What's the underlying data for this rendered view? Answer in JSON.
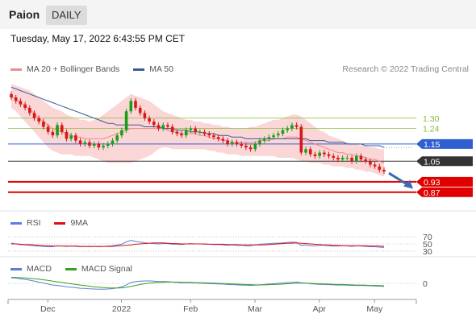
{
  "header": {
    "ticker": "Paion",
    "period": "DAILY"
  },
  "datetime": "Tuesday, May 17, 2022 6:43:55 PM CET",
  "credit": "Research © 2022 Trading Central",
  "legends": {
    "price": [
      {
        "label": "MA 20 + Bollinger Bands",
        "color": "#f08a8a"
      },
      {
        "label": "MA 50",
        "color": "#3a5a98"
      }
    ],
    "rsi": [
      {
        "label": "RSI",
        "color": "#5b7fd6"
      },
      {
        "label": "9MA",
        "color": "#e01010"
      }
    ],
    "macd": [
      {
        "label": "MACD",
        "color": "#5b7fd6"
      },
      {
        "label": "MACD Signal",
        "color": "#3aa01a"
      }
    ]
  },
  "colors": {
    "up": "#1a9e1a",
    "down": "#d81818",
    "bb_fill": "#fbd6d6",
    "ma20": "#f08a8a",
    "ma50": "#3a5a98",
    "arrow": "#3a6ab0"
  },
  "chart_data": [
    {
      "type": "candlestick",
      "x_ticks": [
        "Dec",
        "2022",
        "Feb",
        "Mar",
        "Apr",
        "May"
      ],
      "ylim": [
        0.78,
        1.5
      ],
      "levels": [
        {
          "value": 1.3,
          "label": "1.30",
          "color": "#8db83a",
          "style": "line"
        },
        {
          "value": 1.24,
          "label": "1.24",
          "color": "#8db83a",
          "style": "line"
        },
        {
          "value": 1.15,
          "label": "1.15",
          "color": "#2f5fd0",
          "style": "box"
        },
        {
          "value": 1.05,
          "label": "1.05",
          "color": "#333333",
          "style": "box"
        },
        {
          "value": 0.93,
          "label": "0.93",
          "color": "#e00000",
          "style": "box"
        },
        {
          "value": 0.87,
          "label": "0.87",
          "color": "#e00000",
          "style": "box"
        }
      ],
      "close": [
        1.42,
        1.4,
        1.38,
        1.36,
        1.33,
        1.3,
        1.28,
        1.25,
        1.22,
        1.2,
        1.26,
        1.22,
        1.18,
        1.2,
        1.17,
        1.15,
        1.16,
        1.14,
        1.15,
        1.13,
        1.14,
        1.15,
        1.17,
        1.2,
        1.23,
        1.34,
        1.4,
        1.36,
        1.33,
        1.3,
        1.28,
        1.26,
        1.24,
        1.26,
        1.25,
        1.22,
        1.21,
        1.2,
        1.23,
        1.24,
        1.22,
        1.22,
        1.21,
        1.2,
        1.19,
        1.18,
        1.17,
        1.15,
        1.16,
        1.15,
        1.14,
        1.13,
        1.12,
        1.15,
        1.17,
        1.18,
        1.19,
        1.2,
        1.21,
        1.23,
        1.24,
        1.26,
        1.25,
        1.1,
        1.12,
        1.09,
        1.08,
        1.1,
        1.09,
        1.08,
        1.07,
        1.06,
        1.07,
        1.07,
        1.05,
        1.08,
        1.06,
        1.05,
        1.03,
        1.02,
        1.0,
        0.99
      ],
      "ma20": [
        1.43,
        1.41,
        1.39,
        1.37,
        1.35,
        1.33,
        1.3,
        1.28,
        1.26,
        1.24,
        1.23,
        1.22,
        1.21,
        1.2,
        1.19,
        1.19,
        1.18,
        1.18,
        1.18,
        1.18,
        1.18,
        1.19,
        1.2,
        1.21,
        1.22,
        1.23,
        1.24,
        1.24,
        1.24,
        1.24,
        1.24,
        1.24,
        1.24,
        1.24,
        1.23,
        1.22,
        1.22,
        1.21,
        1.21,
        1.21,
        1.21,
        1.2,
        1.2,
        1.19,
        1.18,
        1.18,
        1.17,
        1.17,
        1.16,
        1.16,
        1.16,
        1.16,
        1.16,
        1.16,
        1.17,
        1.17,
        1.17,
        1.18,
        1.18,
        1.18,
        1.19,
        1.19,
        1.19,
        1.18,
        1.17,
        1.16,
        1.15,
        1.14,
        1.13,
        1.12,
        1.11,
        1.1,
        1.1,
        1.09,
        1.09,
        1.08,
        1.08,
        1.07,
        1.06,
        1.06,
        1.05,
        1.04
      ],
      "ma50": [
        1.48,
        1.47,
        1.46,
        1.45,
        1.44,
        1.43,
        1.42,
        1.41,
        1.4,
        1.39,
        1.38,
        1.37,
        1.36,
        1.35,
        1.34,
        1.33,
        1.32,
        1.31,
        1.3,
        1.29,
        1.28,
        1.27,
        1.27,
        1.26,
        1.26,
        1.26,
        1.26,
        1.26,
        1.26,
        1.25,
        1.25,
        1.25,
        1.25,
        1.24,
        1.24,
        1.24,
        1.23,
        1.23,
        1.23,
        1.22,
        1.22,
        1.22,
        1.21,
        1.21,
        1.21,
        1.2,
        1.2,
        1.2,
        1.19,
        1.19,
        1.19,
        1.18,
        1.18,
        1.18,
        1.18,
        1.18,
        1.18,
        1.18,
        1.18,
        1.18,
        1.18,
        1.18,
        1.18,
        1.18,
        1.18,
        1.17,
        1.17,
        1.17,
        1.17,
        1.16,
        1.16,
        1.16,
        1.16,
        1.15,
        1.15,
        1.15,
        1.15,
        1.14,
        1.14,
        1.14,
        1.14,
        1.13
      ],
      "bb_upper": [
        1.5,
        1.49,
        1.48,
        1.47,
        1.46,
        1.44,
        1.42,
        1.4,
        1.38,
        1.36,
        1.35,
        1.34,
        1.32,
        1.31,
        1.3,
        1.29,
        1.29,
        1.28,
        1.29,
        1.3,
        1.32,
        1.34,
        1.36,
        1.38,
        1.4,
        1.42,
        1.44,
        1.43,
        1.42,
        1.41,
        1.4,
        1.38,
        1.36,
        1.34,
        1.33,
        1.32,
        1.31,
        1.3,
        1.29,
        1.29,
        1.28,
        1.28,
        1.27,
        1.27,
        1.26,
        1.26,
        1.25,
        1.25,
        1.24,
        1.24,
        1.24,
        1.24,
        1.25,
        1.25,
        1.26,
        1.27,
        1.28,
        1.29,
        1.29,
        1.3,
        1.31,
        1.32,
        1.32,
        1.31,
        1.29,
        1.27,
        1.25,
        1.23,
        1.22,
        1.2,
        1.19,
        1.18,
        1.17,
        1.16,
        1.15,
        1.15,
        1.14,
        1.14,
        1.13,
        1.13,
        1.12,
        1.12
      ],
      "bb_lower": [
        1.36,
        1.34,
        1.31,
        1.28,
        1.25,
        1.22,
        1.19,
        1.16,
        1.13,
        1.11,
        1.1,
        1.09,
        1.09,
        1.09,
        1.08,
        1.08,
        1.08,
        1.08,
        1.07,
        1.06,
        1.05,
        1.04,
        1.04,
        1.04,
        1.04,
        1.04,
        1.04,
        1.05,
        1.06,
        1.07,
        1.08,
        1.1,
        1.12,
        1.13,
        1.13,
        1.12,
        1.12,
        1.12,
        1.12,
        1.12,
        1.12,
        1.12,
        1.12,
        1.11,
        1.11,
        1.1,
        1.1,
        1.09,
        1.09,
        1.09,
        1.08,
        1.08,
        1.08,
        1.08,
        1.08,
        1.08,
        1.08,
        1.08,
        1.07,
        1.07,
        1.07,
        1.07,
        1.06,
        1.05,
        1.05,
        1.04,
        1.04,
        1.04,
        1.03,
        1.03,
        1.02,
        1.02,
        1.02,
        1.01,
        1.01,
        1.0,
        1.0,
        0.99,
        0.99,
        0.98,
        0.97,
        0.96
      ]
    },
    {
      "type": "line",
      "name": "RSI",
      "ylim": [
        25,
        75
      ],
      "y_ticks": [
        "70",
        "50",
        "30"
      ],
      "rsi": [
        52,
        50,
        48,
        47,
        46,
        45,
        44,
        43,
        42,
        42,
        45,
        44,
        43,
        44,
        43,
        42,
        43,
        42,
        43,
        42,
        43,
        44,
        45,
        47,
        49,
        56,
        60,
        57,
        55,
        53,
        52,
        51,
        50,
        51,
        51,
        49,
        49,
        48,
        50,
        51,
        50,
        50,
        49,
        49,
        48,
        48,
        47,
        46,
        47,
        46,
        46,
        45,
        45,
        47,
        49,
        50,
        51,
        52,
        52,
        53,
        54,
        55,
        54,
        46,
        47,
        45,
        45,
        46,
        46,
        45,
        44,
        44,
        45,
        45,
        43,
        45,
        44,
        43,
        42,
        42,
        41,
        40
      ],
      "rsi_ma": [
        50,
        50,
        49,
        48,
        48,
        47,
        46,
        45,
        45,
        44,
        44,
        44,
        44,
        44,
        44,
        43,
        43,
        43,
        43,
        43,
        43,
        43,
        43,
        44,
        45,
        46,
        47,
        49,
        50,
        51,
        52,
        53,
        53,
        53,
        52,
        51,
        51,
        50,
        50,
        50,
        50,
        50,
        50,
        49,
        49,
        49,
        49,
        48,
        48,
        48,
        47,
        47,
        47,
        47,
        47,
        47,
        48,
        49,
        50,
        51,
        52,
        52,
        53,
        52,
        51,
        50,
        49,
        48,
        47,
        47,
        46,
        46,
        45,
        45,
        45,
        45,
        45,
        45,
        44,
        44,
        44,
        43
      ]
    },
    {
      "type": "line",
      "name": "MACD",
      "ylim": [
        -0.06,
        0.06
      ],
      "y_ticks": [
        "0"
      ],
      "macd": [
        0.03,
        0.028,
        0.025,
        0.021,
        0.017,
        0.012,
        0.007,
        0.002,
        -0.004,
        -0.009,
        -0.011,
        -0.014,
        -0.018,
        -0.02,
        -0.023,
        -0.026,
        -0.027,
        -0.029,
        -0.03,
        -0.031,
        -0.031,
        -0.03,
        -0.028,
        -0.024,
        -0.019,
        -0.008,
        0.004,
        0.009,
        0.012,
        0.013,
        0.013,
        0.012,
        0.01,
        0.01,
        0.009,
        0.007,
        0.005,
        0.003,
        0.003,
        0.003,
        0.002,
        0.001,
        0.0,
        -0.001,
        -0.002,
        -0.003,
        -0.004,
        -0.006,
        -0.007,
        -0.008,
        -0.009,
        -0.01,
        -0.011,
        -0.01,
        -0.008,
        -0.006,
        -0.004,
        -0.002,
        0.0,
        0.002,
        0.004,
        0.006,
        0.007,
        0.003,
        0.001,
        -0.002,
        -0.004,
        -0.005,
        -0.006,
        -0.007,
        -0.008,
        -0.009,
        -0.009,
        -0.01,
        -0.011,
        -0.011,
        -0.011,
        -0.012,
        -0.013,
        -0.014,
        -0.015,
        -0.016
      ],
      "signal": [
        0.032,
        0.031,
        0.03,
        0.029,
        0.027,
        0.025,
        0.022,
        0.019,
        0.016,
        0.012,
        0.008,
        0.005,
        0.001,
        -0.002,
        -0.006,
        -0.009,
        -0.012,
        -0.015,
        -0.018,
        -0.02,
        -0.022,
        -0.024,
        -0.025,
        -0.025,
        -0.024,
        -0.021,
        -0.016,
        -0.011,
        -0.006,
        -0.002,
        0.001,
        0.003,
        0.005,
        0.006,
        0.007,
        0.007,
        0.007,
        0.006,
        0.005,
        0.005,
        0.004,
        0.003,
        0.003,
        0.002,
        0.001,
        0.0,
        -0.001,
        -0.002,
        -0.003,
        -0.004,
        -0.005,
        -0.006,
        -0.007,
        -0.008,
        -0.008,
        -0.008,
        -0.007,
        -0.006,
        -0.005,
        -0.004,
        -0.002,
        -0.001,
        0.001,
        0.001,
        0.001,
        0.0,
        -0.001,
        -0.002,
        -0.003,
        -0.004,
        -0.005,
        -0.006,
        -0.006,
        -0.007,
        -0.008,
        -0.009,
        -0.009,
        -0.01,
        -0.011,
        -0.011,
        -0.012,
        -0.013
      ]
    }
  ]
}
